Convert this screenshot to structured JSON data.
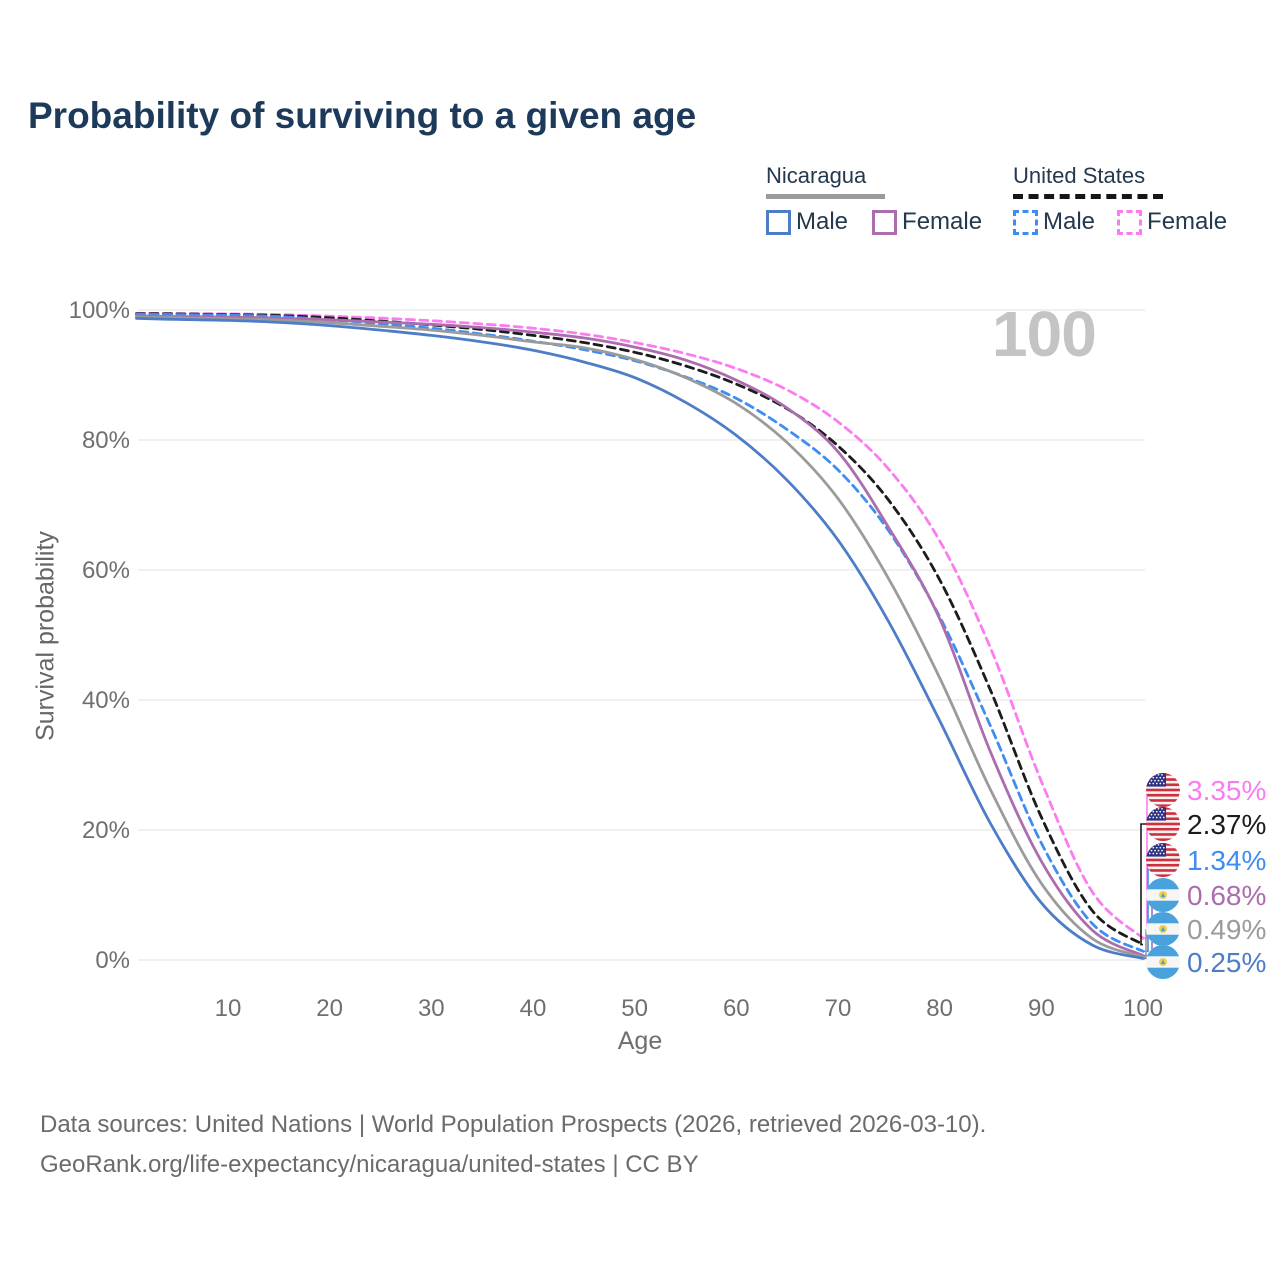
{
  "title": "Probability of surviving to a given age",
  "watermark": "100",
  "legend": {
    "groups": [
      {
        "country": "Nicaragua",
        "line_style": "solid",
        "line_color": "#9b9b9b",
        "items": [
          {
            "label": "Male",
            "color": "#4e7dc7",
            "dashed": false
          },
          {
            "label": "Female",
            "color": "#ab6dad",
            "dashed": false
          }
        ]
      },
      {
        "country": "United States",
        "line_style": "dashed",
        "line_color": "#161616",
        "items": [
          {
            "label": "Male",
            "color": "#3f8df2",
            "dashed": true
          },
          {
            "label": "Female",
            "color": "#fb7cf0",
            "dashed": true
          }
        ]
      }
    ]
  },
  "chart_data": {
    "type": "line",
    "title": "Probability of surviving to a given age",
    "xlabel": "Age",
    "ylabel": "Survival probability",
    "xlim": [
      0,
      100
    ],
    "ylim": [
      0,
      100
    ],
    "grid": "horizontal",
    "x_ticks": [
      10,
      20,
      30,
      40,
      50,
      60,
      70,
      80,
      90,
      100
    ],
    "y_ticks": [
      {
        "value": 0,
        "label": "0%"
      },
      {
        "value": 20,
        "label": "20%"
      },
      {
        "value": 40,
        "label": "40%"
      },
      {
        "value": 60,
        "label": "60%"
      },
      {
        "value": 80,
        "label": "80%"
      },
      {
        "value": 100,
        "label": "100%"
      }
    ],
    "ages": [
      1,
      5,
      10,
      15,
      20,
      25,
      30,
      35,
      40,
      45,
      50,
      55,
      60,
      65,
      70,
      75,
      80,
      85,
      90,
      95,
      100
    ],
    "series": [
      {
        "name": "United States Female",
        "color": "#fb7cf0",
        "dashed": true,
        "values": [
          99.5,
          99.45,
          99.4,
          99.3,
          99.05,
          98.75,
          98.35,
          97.85,
          97.2,
          96.3,
          95.0,
          93.3,
          91.0,
          87.7,
          82.8,
          75.5,
          64.5,
          48.0,
          27.5,
          10.5,
          3.35
        ]
      },
      {
        "name": "United States Both sexes",
        "color": "#1c1c1c",
        "dashed": true,
        "values": [
          99.45,
          99.4,
          99.3,
          99.15,
          98.8,
          98.3,
          97.7,
          97.0,
          96.1,
          95.0,
          93.5,
          91.4,
          88.6,
          84.8,
          79.1,
          70.7,
          58.5,
          41.5,
          22.0,
          7.6,
          2.37
        ]
      },
      {
        "name": "United States Male",
        "color": "#3f8df2",
        "dashed": true,
        "values": [
          99.35,
          99.3,
          99.2,
          99.0,
          98.5,
          97.9,
          97.2,
          96.3,
          95.2,
          93.9,
          92.2,
          89.7,
          86.4,
          81.6,
          75.4,
          66.0,
          52.8,
          36.0,
          18.0,
          5.6,
          1.34
        ]
      },
      {
        "name": "Nicaragua Female",
        "color": "#ab6dad",
        "dashed": false,
        "values": [
          99.1,
          99.0,
          98.9,
          98.75,
          98.5,
          98.15,
          97.8,
          97.3,
          96.6,
          95.7,
          94.3,
          92.3,
          89.2,
          84.9,
          78.2,
          66.5,
          52.5,
          32.0,
          15.2,
          4.6,
          0.68
        ]
      },
      {
        "name": "Nicaragua Both sexes",
        "color": "#9b9b9b",
        "dashed": false,
        "values": [
          98.9,
          98.8,
          98.65,
          98.45,
          98.05,
          97.5,
          96.9,
          96.1,
          95.1,
          94.2,
          92.4,
          89.6,
          85.6,
          79.6,
          71.0,
          58.6,
          43.4,
          26.2,
          11.8,
          3.3,
          0.49
        ]
      },
      {
        "name": "Nicaragua Male",
        "color": "#4e7dc7",
        "dashed": false,
        "values": [
          98.7,
          98.55,
          98.4,
          98.1,
          97.6,
          96.9,
          96.1,
          95.1,
          93.8,
          92.0,
          89.6,
          85.8,
          80.7,
          73.8,
          64.6,
          52.0,
          36.8,
          21.0,
          8.8,
          2.3,
          0.25
        ]
      }
    ],
    "end_labels": [
      {
        "label": "3.35%",
        "value": 3.35,
        "series": "United States Female",
        "flag": "us",
        "color": "#fb7cf0"
      },
      {
        "label": "2.37%",
        "value": 2.37,
        "series": "United States Both sexes",
        "flag": "us",
        "color": "#1c1c1c"
      },
      {
        "label": "1.34%",
        "value": 1.34,
        "series": "United States Male",
        "flag": "us",
        "color": "#3f8df2"
      },
      {
        "label": "0.68%",
        "value": 0.68,
        "series": "Nicaragua Female",
        "flag": "nicaragua",
        "color": "#ab6dad"
      },
      {
        "label": "0.49%",
        "value": 0.49,
        "series": "Nicaragua Both sexes",
        "flag": "nicaragua",
        "color": "#9b9b9b"
      },
      {
        "label": "0.25%",
        "value": 0.25,
        "series": "Nicaragua Male",
        "flag": "nicaragua",
        "color": "#4e7dc7"
      }
    ],
    "watermark_age": "100"
  },
  "footer": {
    "line1": "Data sources: United Nations | World Population Prospects (2026, retrieved 2026-03-10).",
    "line2": "GeoRank.org/life-expectancy/nicaragua/united-states | CC BY"
  }
}
